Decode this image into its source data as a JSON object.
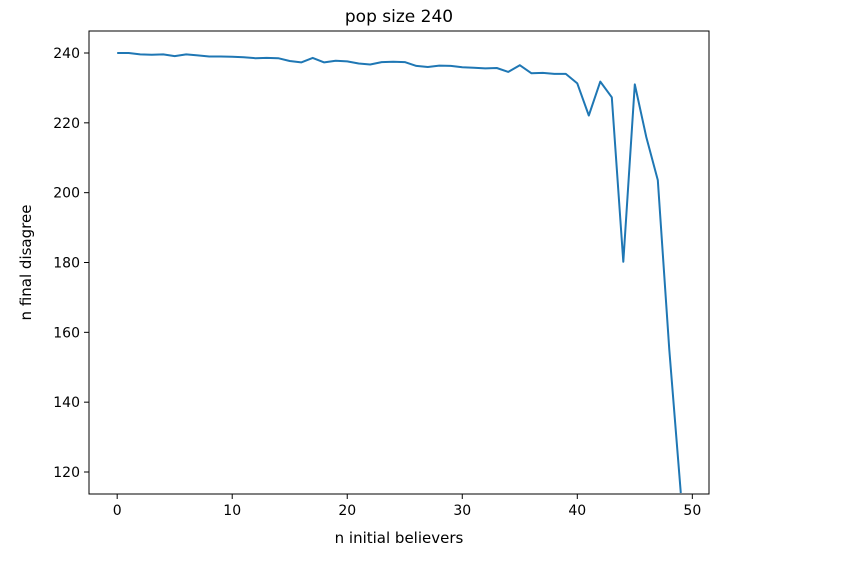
{
  "chart_data": {
    "type": "line",
    "title": "pop size 240",
    "xlabel": "n initial believers",
    "ylabel": "n final disagree",
    "xlim": [
      -2.45,
      51.45
    ],
    "ylim": [
      113.7,
      246.3
    ],
    "xticks": [
      0,
      10,
      20,
      30,
      40,
      50
    ],
    "yticks": [
      120,
      140,
      160,
      180,
      200,
      220,
      240
    ],
    "grid": false,
    "series": [
      {
        "color": "#1f77b4",
        "x": [
          0,
          1,
          2,
          3,
          4,
          5,
          6,
          7,
          8,
          9,
          10,
          11,
          12,
          13,
          14,
          15,
          16,
          17,
          18,
          19,
          20,
          21,
          22,
          23,
          24,
          25,
          26,
          27,
          28,
          29,
          30,
          31,
          32,
          33,
          34,
          35,
          36,
          37,
          38,
          39,
          40,
          41,
          42,
          43,
          44,
          45,
          46,
          47,
          48,
          49
        ],
        "y": [
          240.0,
          240.0,
          239.6,
          239.5,
          239.6,
          239.1,
          239.6,
          239.3,
          239.0,
          239.0,
          238.9,
          238.8,
          238.5,
          238.6,
          238.5,
          237.7,
          237.3,
          238.6,
          237.3,
          237.8,
          237.6,
          237.0,
          236.7,
          237.4,
          237.5,
          237.4,
          236.3,
          236.0,
          236.4,
          236.3,
          235.9,
          235.8,
          235.6,
          235.7,
          234.6,
          236.5,
          234.2,
          234.3,
          234.0,
          234.0,
          231.3,
          222.1,
          231.8,
          227.3,
          180.2,
          231.0,
          215.9,
          203.6,
          155.0,
          114.0
        ]
      }
    ]
  }
}
